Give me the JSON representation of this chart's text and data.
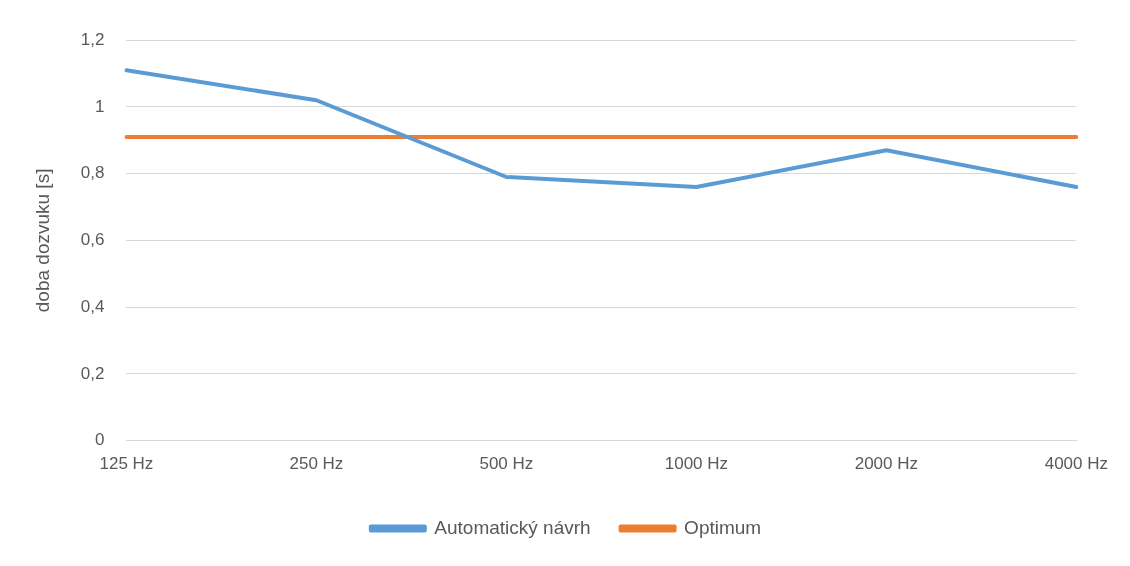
{
  "chart_data": {
    "type": "line",
    "ylabel": "doba dozvuku [s]",
    "categories": [
      "125 Hz",
      "250 Hz",
      "500 Hz",
      "1000 Hz",
      "2000 Hz",
      "4000 Hz"
    ],
    "series": [
      {
        "name": "Automatický návrh",
        "color": "#5b9bd5",
        "values": [
          1.11,
          1.02,
          0.79,
          0.76,
          0.87,
          0.76
        ]
      },
      {
        "name": "Optimum",
        "color": "#ed7d31",
        "values": [
          0.91,
          0.91,
          0.91,
          0.91,
          0.91,
          0.91
        ]
      }
    ],
    "ylim": [
      0,
      1.2
    ],
    "yticks": [
      {
        "value": 0,
        "label": "0"
      },
      {
        "value": 0.2,
        "label": "0,2"
      },
      {
        "value": 0.4,
        "label": "0,4"
      },
      {
        "value": 0.6,
        "label": "0,6"
      },
      {
        "value": 0.8,
        "label": "0,8"
      },
      {
        "value": 1,
        "label": "1"
      },
      {
        "value": 1.2,
        "label": "1,2"
      }
    ],
    "grid": "y",
    "legend": "bottom",
    "marker": "none",
    "line_style": "solid"
  }
}
